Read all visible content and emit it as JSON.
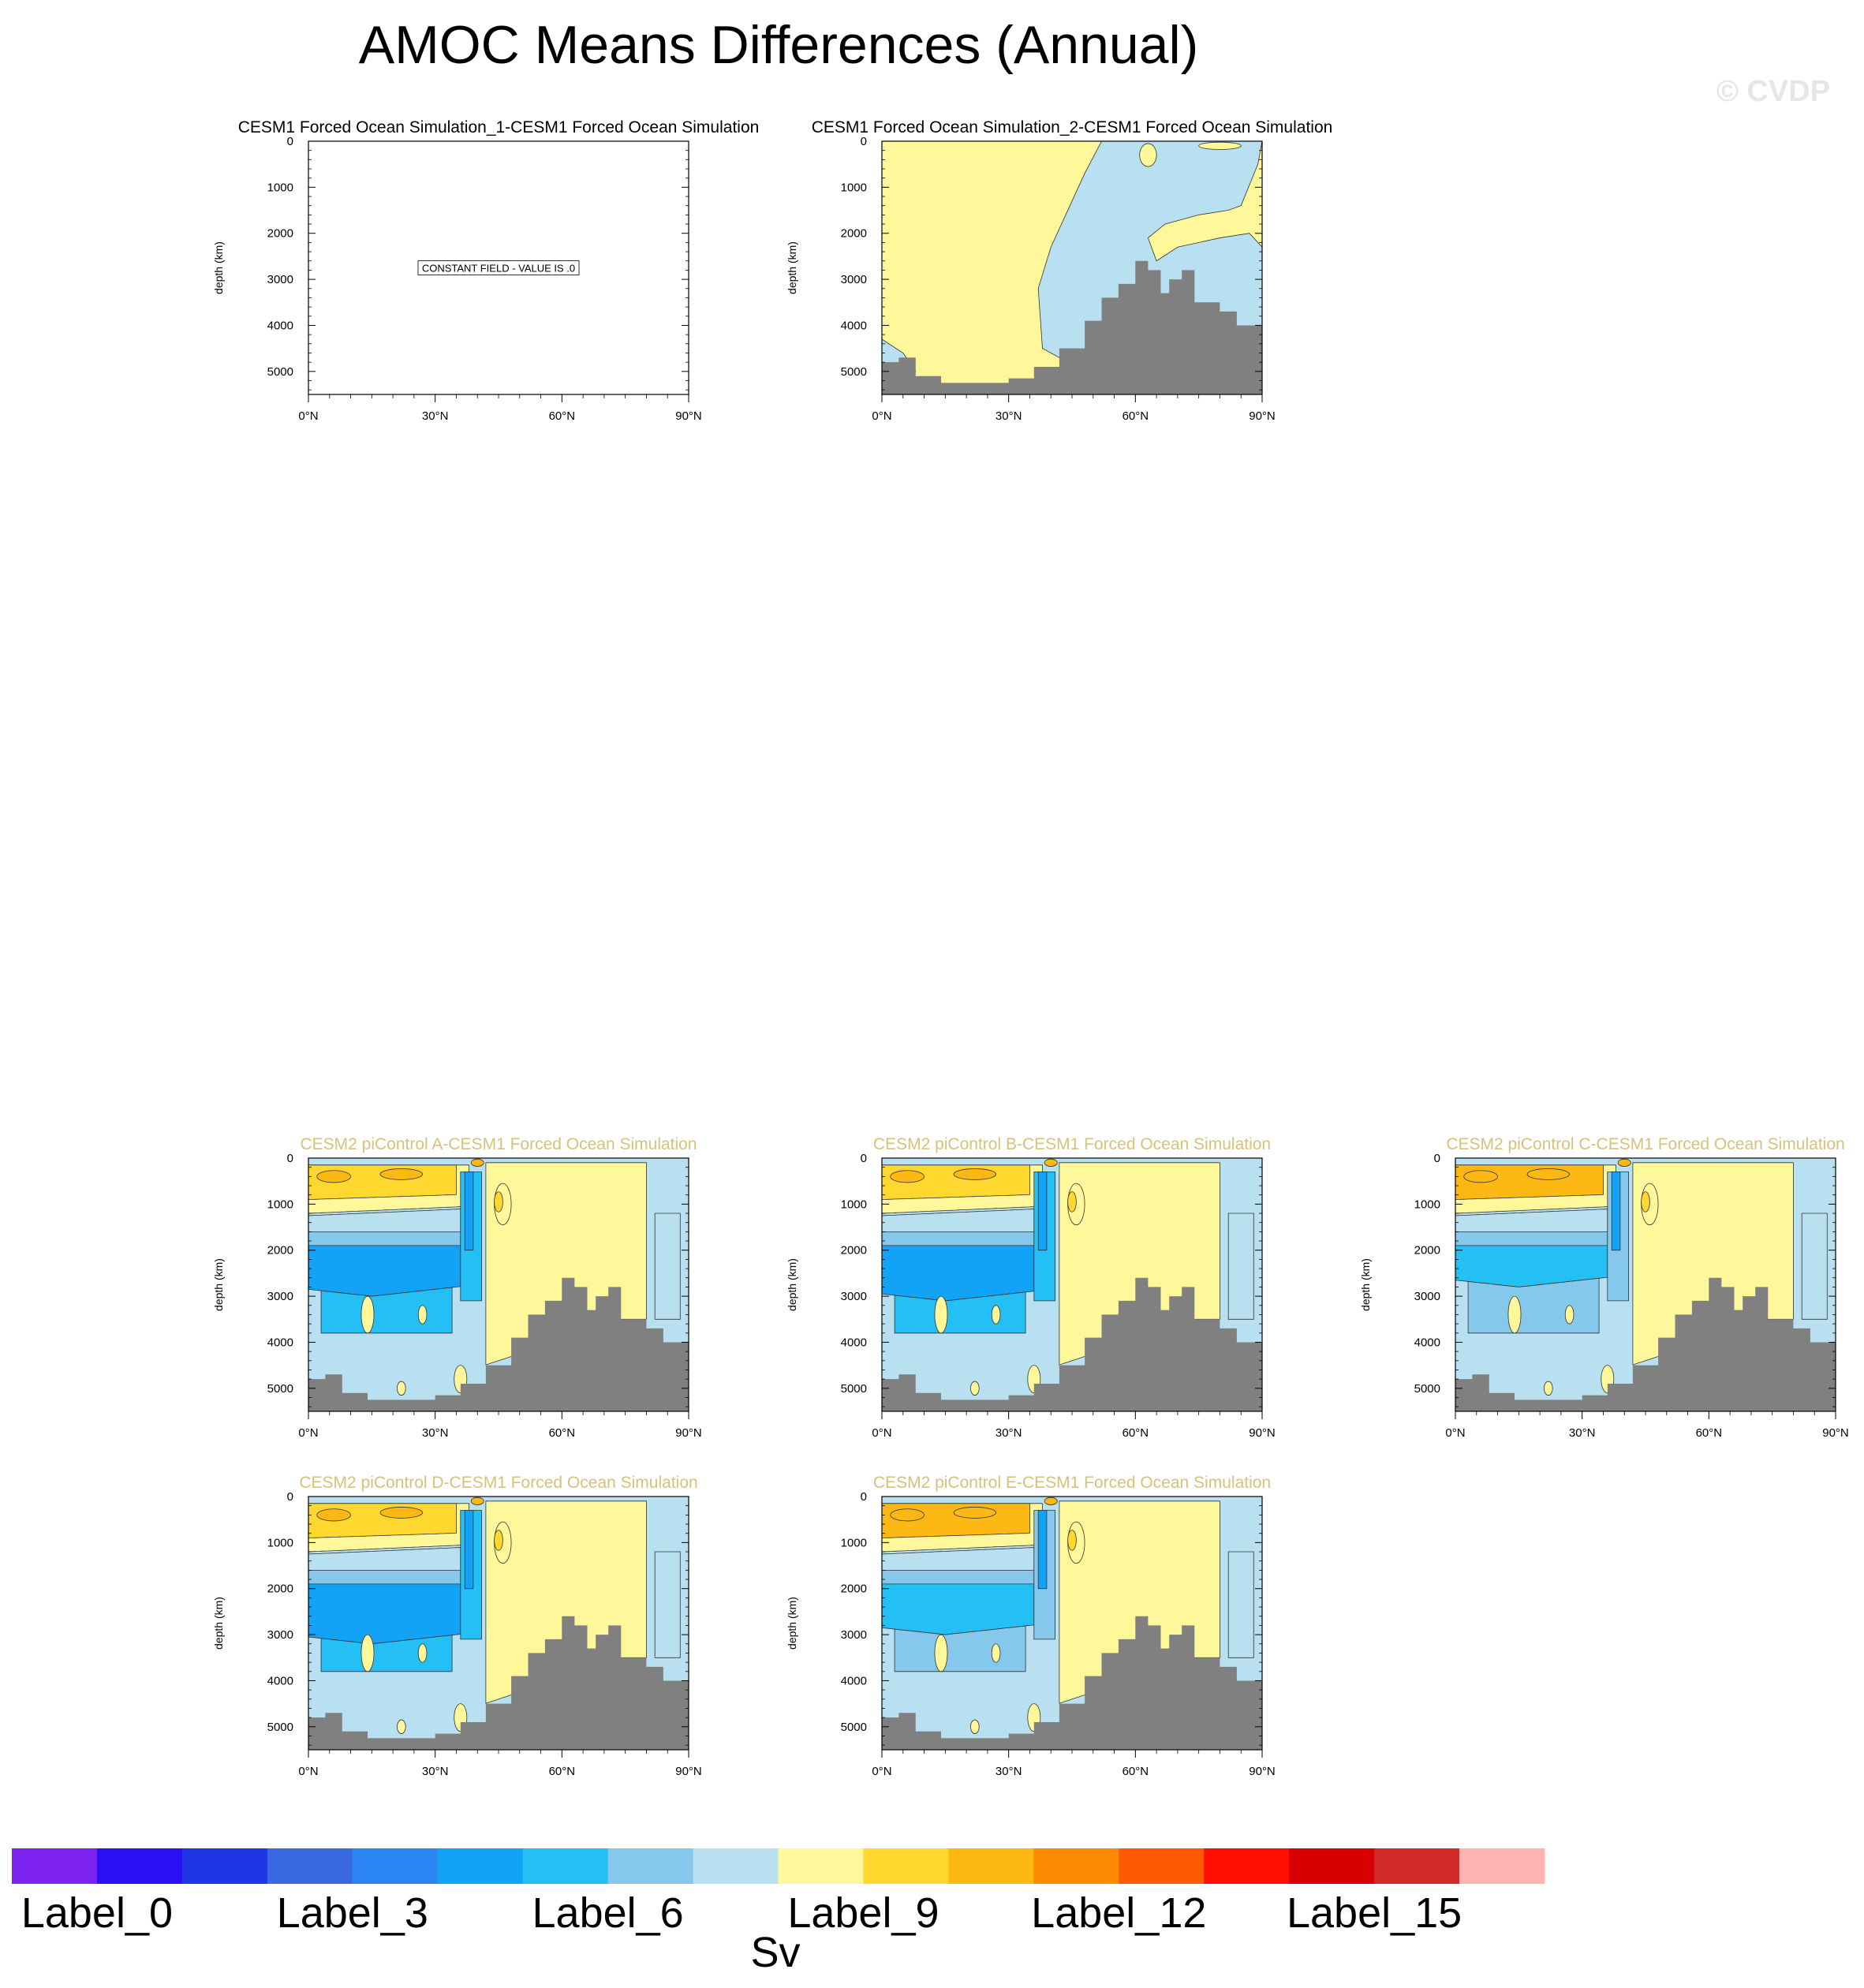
{
  "title": "AMOC Means Differences (Annual)",
  "watermark": "© CVDP",
  "colors": {
    "land": "#808080",
    "title_default": "#000000",
    "title_highlight": "#d6c27a"
  },
  "colorbar": {
    "units": "Sv",
    "colors": [
      "#7d23f0",
      "#2a10f5",
      "#1d36e6",
      "#3a68e2",
      "#2a85f2",
      "#12a3f7",
      "#24bff5",
      "#86c8ec",
      "#b8e0f0",
      "#fff89a",
      "#fed82e",
      "#fdb813",
      "#fd8a02",
      "#fd5a06",
      "#fe1100",
      "#d80000",
      "#d02a2a",
      "#feb2b2"
    ],
    "labels": [
      {
        "index": 0,
        "text": "Label_0"
      },
      {
        "index": 3,
        "text": "Label_3"
      },
      {
        "index": 6,
        "text": "Label_6"
      },
      {
        "index": 9,
        "text": "Label_9"
      },
      {
        "index": 12,
        "text": "Label_12"
      },
      {
        "index": 15,
        "text": "Label_15"
      }
    ]
  },
  "chart_data": [
    {
      "type": "heatmap",
      "panel": "p1",
      "title": "CESM1 Forced Ocean Simulation_1-CESM1 Forced Ocean Simulation",
      "ylabel": "depth (km)",
      "xlim": [
        0,
        90
      ],
      "ylim": [
        0,
        5500
      ],
      "xticks": [
        "0°N",
        "30°N",
        "60°N",
        "90°N"
      ],
      "yticks": [
        "0",
        "1000",
        "2000",
        "3000",
        "4000",
        "5000"
      ],
      "constant_field": "CONSTANT FIELD - VALUE IS .0",
      "pattern": "none",
      "title_style": "default"
    },
    {
      "type": "heatmap",
      "panel": "p2",
      "title": "CESM1 Forced Ocean Simulation_2-CESM1 Forced Ocean Simulation",
      "ylabel": "depth (km)",
      "xlim": [
        0,
        90
      ],
      "ylim": [
        0,
        5500
      ],
      "xticks": [
        "0°N",
        "30°N",
        "60°N",
        "90°N"
      ],
      "yticks": [
        "0",
        "1000",
        "2000",
        "3000",
        "4000",
        "5000"
      ],
      "pattern": "cesm1",
      "title_style": "default"
    },
    {
      "type": "heatmap",
      "panel": "pA",
      "title": "CESM2 piControl A-CESM1 Forced Ocean Simulation",
      "ylabel": "depth (km)",
      "xlim": [
        0,
        90
      ],
      "ylim": [
        0,
        5500
      ],
      "xticks": [
        "0°N",
        "30°N",
        "60°N",
        "90°N"
      ],
      "yticks": [
        "0",
        "1000",
        "2000",
        "3000",
        "4000",
        "5000"
      ],
      "pattern": "cesm2",
      "variant": "A",
      "title_style": "highlight"
    },
    {
      "type": "heatmap",
      "panel": "pB",
      "title": "CESM2 piControl B-CESM1 Forced Ocean Simulation",
      "ylabel": "depth (km)",
      "xlim": [
        0,
        90
      ],
      "ylim": [
        0,
        5500
      ],
      "xticks": [
        "0°N",
        "30°N",
        "60°N",
        "90°N"
      ],
      "yticks": [
        "0",
        "1000",
        "2000",
        "3000",
        "4000",
        "5000"
      ],
      "pattern": "cesm2",
      "variant": "B",
      "title_style": "highlight"
    },
    {
      "type": "heatmap",
      "panel": "pC",
      "title": "CESM2 piControl C-CESM1 Forced Ocean Simulation",
      "ylabel": "depth (km)",
      "xlim": [
        0,
        90
      ],
      "ylim": [
        0,
        5500
      ],
      "xticks": [
        "0°N",
        "30°N",
        "60°N",
        "90°N"
      ],
      "yticks": [
        "0",
        "1000",
        "2000",
        "3000",
        "4000",
        "5000"
      ],
      "pattern": "cesm2",
      "variant": "C",
      "title_style": "highlight"
    },
    {
      "type": "heatmap",
      "panel": "pD",
      "title": "CESM2 piControl D-CESM1 Forced Ocean Simulation",
      "ylabel": "depth (km)",
      "xlim": [
        0,
        90
      ],
      "ylim": [
        0,
        5500
      ],
      "xticks": [
        "0°N",
        "30°N",
        "60°N",
        "90°N"
      ],
      "yticks": [
        "0",
        "1000",
        "2000",
        "3000",
        "4000",
        "5000"
      ],
      "pattern": "cesm2",
      "variant": "D",
      "title_style": "highlight"
    },
    {
      "type": "heatmap",
      "panel": "pE",
      "title": "CESM2 piControl E-CESM1 Forced Ocean Simulation",
      "ylabel": "depth (km)",
      "xlim": [
        0,
        90
      ],
      "ylim": [
        0,
        5500
      ],
      "xticks": [
        "0°N",
        "30°N",
        "60°N",
        "90°N"
      ],
      "yticks": [
        "0",
        "1000",
        "2000",
        "3000",
        "4000",
        "5000"
      ],
      "pattern": "cesm2",
      "variant": "E",
      "title_style": "highlight"
    }
  ]
}
